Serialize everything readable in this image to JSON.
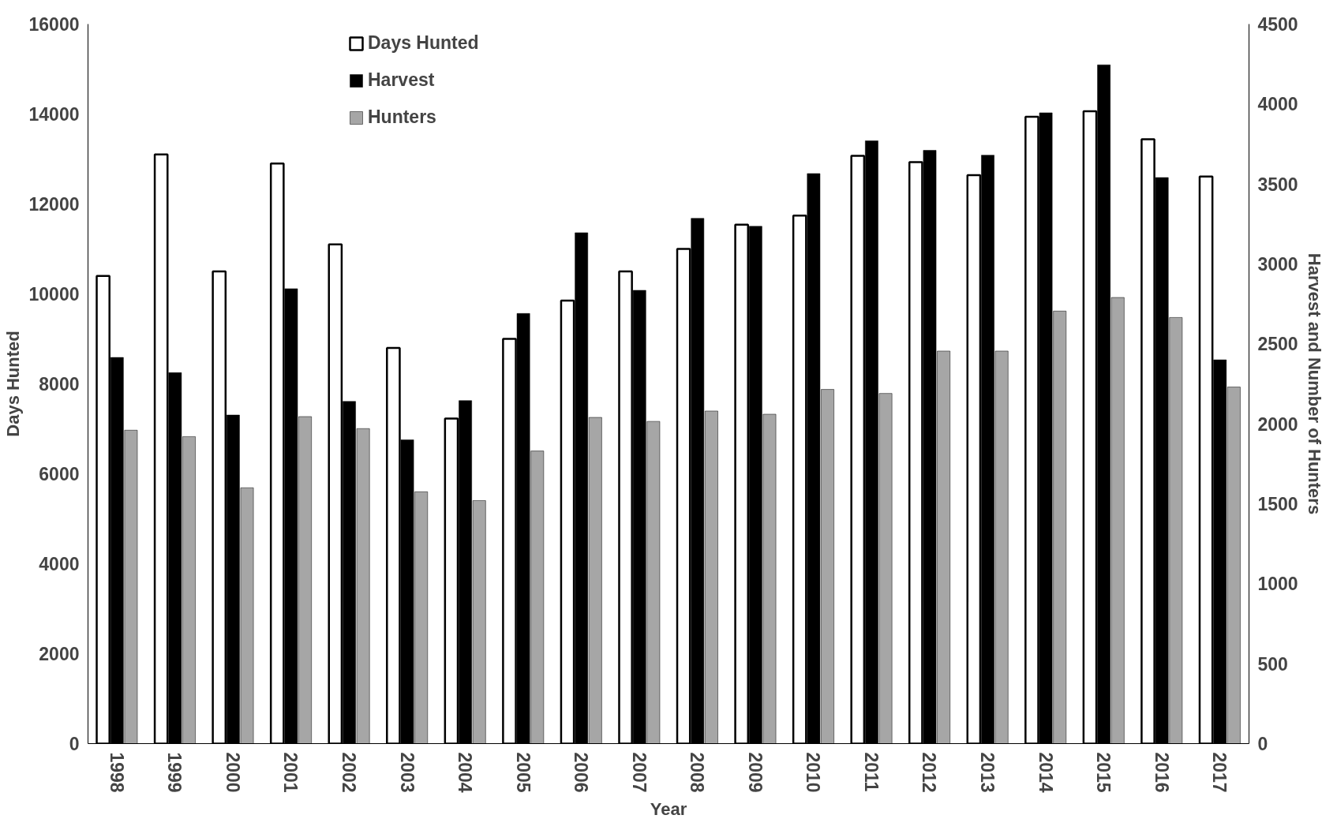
{
  "chart_data": {
    "type": "bar",
    "xlabel": "Year",
    "ylabel": "Days Hunted",
    "y2label": "Harvest and Number of Hunters",
    "categories": [
      "1998",
      "1999",
      "2000",
      "2001",
      "2002",
      "2003",
      "2004",
      "2005",
      "2006",
      "2007",
      "2008",
      "2009",
      "2010",
      "2011",
      "2012",
      "2013",
      "2014",
      "2015",
      "2016",
      "2017"
    ],
    "series": [
      {
        "name": "Days Hunted",
        "color": "#ffffff",
        "values": [
          10400,
          13100,
          10500,
          12900,
          11100,
          8800,
          7230,
          9000,
          9850,
          10500,
          11000,
          11540,
          11740,
          13070,
          12930,
          12640,
          13940,
          14060,
          13440,
          12610
        ]
      },
      {
        "name": "Harvest",
        "color": "#000000",
        "axis": "y2",
        "values": [
          2415,
          2320,
          2055,
          2845,
          2140,
          1900,
          2145,
          2690,
          3195,
          2835,
          3285,
          3235,
          3565,
          3770,
          3710,
          3680,
          3945,
          4245,
          3540,
          2400
        ]
      },
      {
        "name": "Hunters",
        "color": "#a6a6a6",
        "axis": "y2",
        "values": [
          1960,
          1920,
          1600,
          2045,
          1970,
          1575,
          1520,
          1830,
          2040,
          2015,
          2080,
          2060,
          2215,
          2190,
          2455,
          2455,
          2705,
          2790,
          2665,
          2230
        ]
      }
    ],
    "ylim": [
      0,
      16000
    ],
    "yticks": [
      0,
      2000,
      4000,
      6000,
      8000,
      10000,
      12000,
      14000,
      16000
    ],
    "y2lim": [
      0,
      4500
    ],
    "y2ticks": [
      0,
      500,
      1000,
      1500,
      2000,
      2500,
      3000,
      3500,
      4000,
      4500
    ],
    "grid": false,
    "legend": "top"
  }
}
